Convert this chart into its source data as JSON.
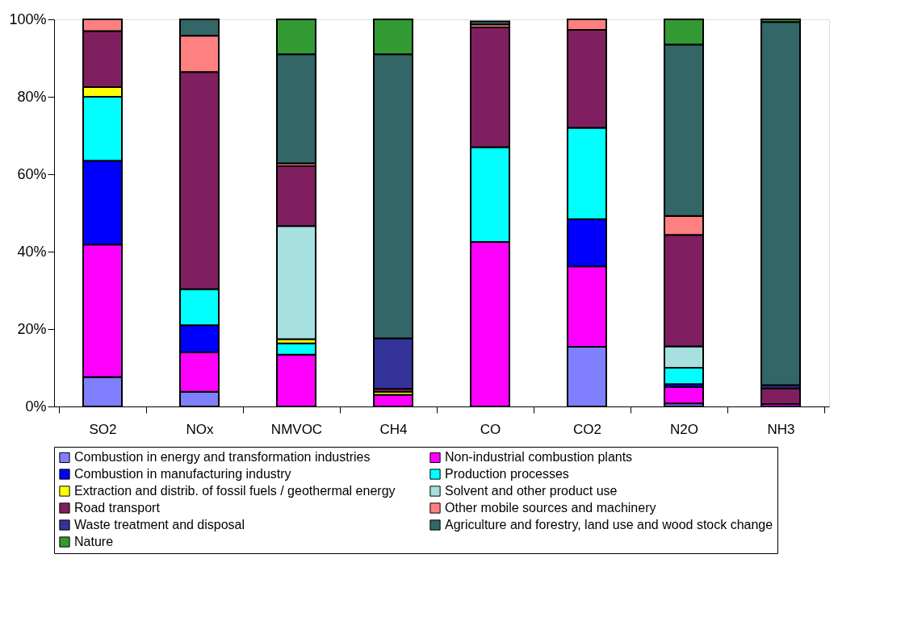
{
  "chart_data": {
    "type": "bar",
    "stacked": true,
    "categories": [
      "SO2",
      "NOx",
      "NMVOC",
      "CH4",
      "CO",
      "CO2",
      "N2O",
      "NH3"
    ],
    "series": [
      {
        "name": "Combustion in energy and transformation industries",
        "color": "#8080ff",
        "values": [
          7.6,
          3.8,
          null,
          null,
          null,
          15.4,
          0.8,
          null
        ]
      },
      {
        "name": "Non-industrial combustion plants",
        "color": "#ff00ff",
        "values": [
          34.2,
          10.2,
          13.4,
          3.0,
          42.5,
          20.8,
          4.2,
          0.6
        ]
      },
      {
        "name": "Combustion in manufacturing industry",
        "color": "#0000ff",
        "values": [
          21.7,
          7.0,
          null,
          null,
          null,
          12.2,
          0.8,
          null
        ]
      },
      {
        "name": "Production processes",
        "color": "#00ffff",
        "values": [
          16.5,
          9.3,
          2.9,
          null,
          24.5,
          23.6,
          4.2,
          null
        ]
      },
      {
        "name": "Extraction and distrib. of fossil fuels / geothermal energy",
        "color": "#ffff00",
        "values": [
          2.5,
          null,
          1.1,
          0.8,
          null,
          null,
          null,
          null
        ]
      },
      {
        "name": "Solvent and other product use",
        "color": "#a6e0e0",
        "values": [
          null,
          null,
          29.2,
          null,
          null,
          null,
          5.5,
          null
        ]
      },
      {
        "name": "Road transport",
        "color": "#7f1f5f",
        "values": [
          14.5,
          56.1,
          15.5,
          0.8,
          30.9,
          25.3,
          28.8,
          4.1
        ]
      },
      {
        "name": "Other mobile sources and machinery",
        "color": "#ff8080",
        "values": [
          3.0,
          9.4,
          0.7,
          null,
          0.8,
          2.7,
          4.9,
          null
        ]
      },
      {
        "name": "Waste treatment and disposal",
        "color": "#333399",
        "values": [
          null,
          null,
          null,
          13.0,
          null,
          null,
          null,
          0.8
        ]
      },
      {
        "name": "Agriculture and forestry, land use and wood stock change",
        "color": "#336666",
        "values": [
          null,
          4.2,
          28.2,
          73.4,
          0.8,
          null,
          44.3,
          93.8
        ]
      },
      {
        "name": "Nature",
        "color": "#339933",
        "values": [
          null,
          null,
          9.0,
          9.0,
          null,
          null,
          6.5,
          0.7
        ]
      }
    ],
    "ylim": [
      0,
      100
    ],
    "yticks": [
      {
        "value": 0,
        "label": "0%"
      },
      {
        "value": 20,
        "label": "20%"
      },
      {
        "value": 40,
        "label": "40%"
      },
      {
        "value": 60,
        "label": "60%"
      },
      {
        "value": 80,
        "label": "80%"
      },
      {
        "value": 100,
        "label": "100%"
      }
    ],
    "grid": false,
    "legend": "bottom"
  }
}
